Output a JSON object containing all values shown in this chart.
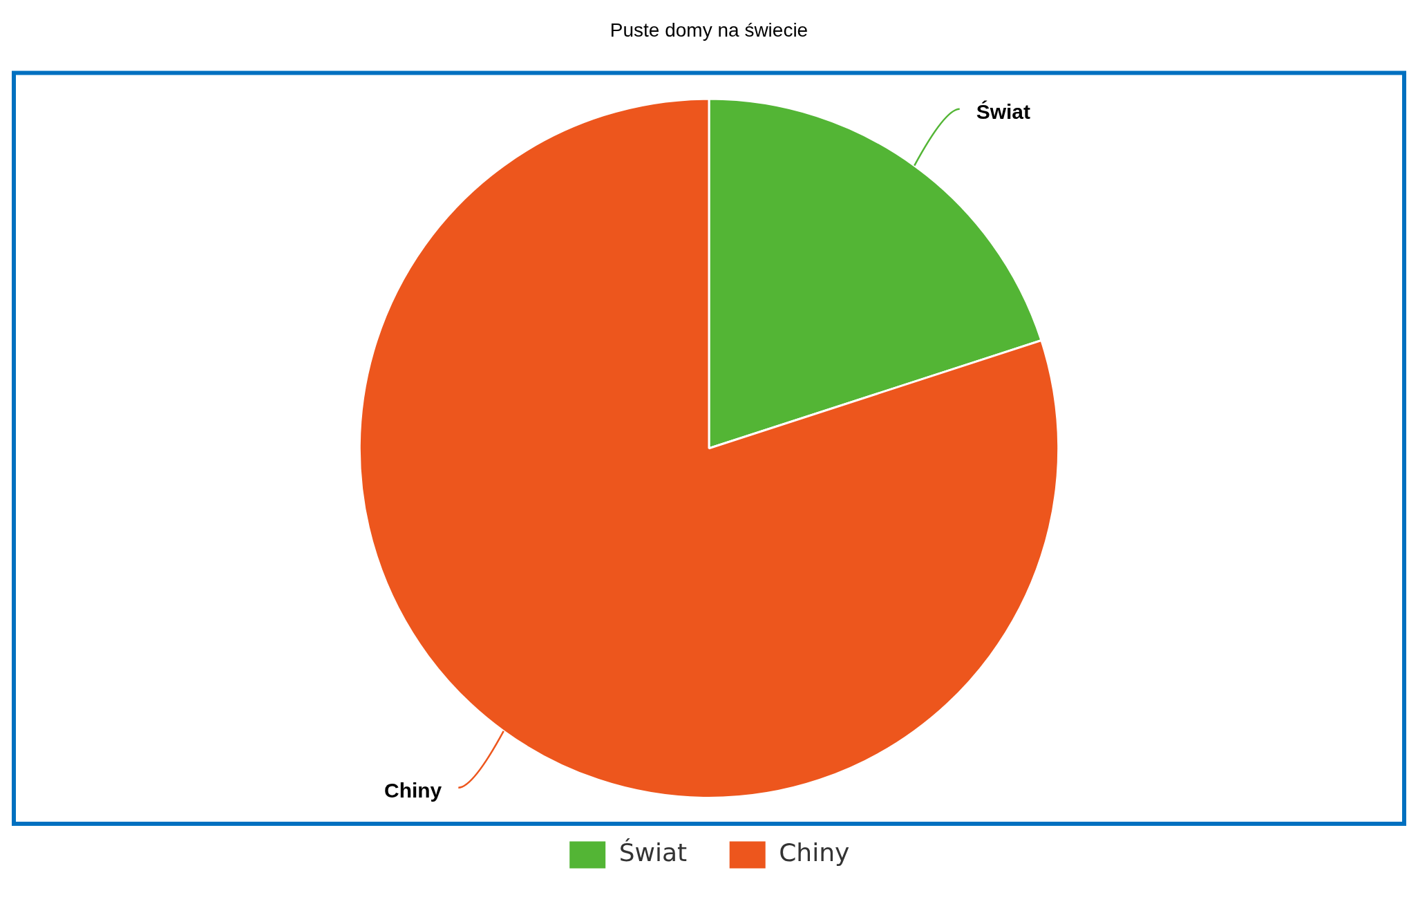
{
  "chart_data": {
    "type": "pie",
    "title": "Puste domy na świecie",
    "categories": [
      "Świat",
      "Chiny"
    ],
    "values": [
      20,
      80
    ],
    "colors": [
      "#53b535",
      "#ed561d"
    ],
    "legend": "bottom"
  }
}
